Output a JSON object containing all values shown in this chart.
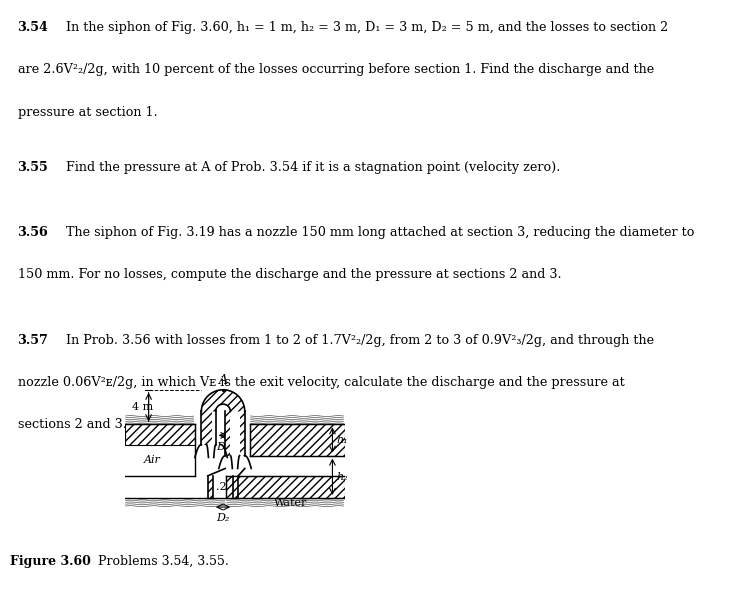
{
  "bg_color": "#ffffff",
  "line_color": "#000000",
  "fig_caption": "Figure 3.60",
  "fig_caption2": "Problems 3.54, 3.55.",
  "label_A": "A",
  "label_4m": "4 m",
  "label_D1": "D₁",
  "label_D2": "D₂",
  "label_h1": "h₁",
  "label_h2": "h₂",
  "label_2": ".2",
  "label_Air": "Air",
  "label_Water": "Water",
  "p354_num": "3.54",
  "p354_line1": "In the siphon of Fig. 3.60, h₁ = 1 m, h₂ = 3 m, D₁ = 3 m, D₂ = 5 m, and the losses to section 2",
  "p354_line2": "are 2.6V²₂/2g, with 10 percent of the losses occurring before section 1. Find the discharge and the",
  "p354_line3": "pressure at section 1.",
  "p355_num": "3.55",
  "p355_line1": "Find the pressure at A of Prob. 3.54 if it is a stagnation point (velocity zero).",
  "p356_num": "3.56",
  "p356_line1": "The siphon of Fig. 3.19 has a nozzle 150 mm long attached at section 3, reducing the diameter to",
  "p356_line2": "150 mm. For no losses, compute the discharge and the pressure at sections 2 and 3.",
  "p357_num": "3.57",
  "p357_line1": "In Prob. 3.56 with losses from 1 to 2 of 1.7V²₂/2g, from 2 to 3 of 0.9V²₃/2g, and through the",
  "p357_line2": "nozzle 0.06V²ᴇ/2g, in which Vᴇ is the exit velocity, calculate the discharge and the pressure at",
  "p357_line3": "sections 2 and 3."
}
